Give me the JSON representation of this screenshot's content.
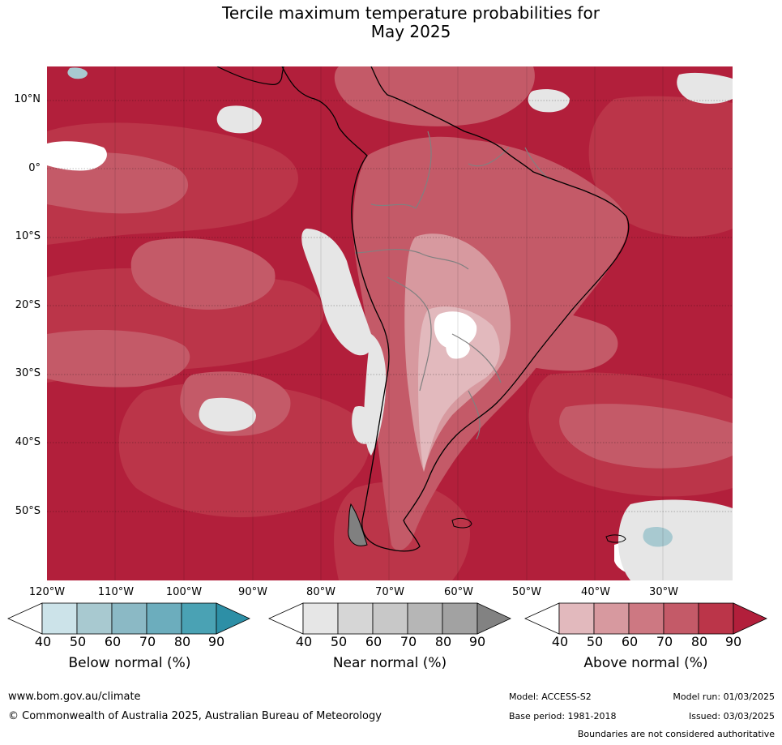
{
  "title": {
    "line1": "Tercile maximum temperature probabilities for",
    "line2": "May 2025"
  },
  "map": {
    "lat_labels": [
      "10°N",
      "0°",
      "10°S",
      "20°S",
      "30°S",
      "40°S",
      "50°S"
    ],
    "lon_labels": [
      "120°W",
      "110°W",
      "100°W",
      "90°W",
      "80°W",
      "70°W",
      "60°W",
      "50°W",
      "40°W",
      "30°W"
    ]
  },
  "colorbars": [
    {
      "title": "Below normal (%)",
      "ticks": [
        "40",
        "50",
        "60",
        "70",
        "80",
        "90"
      ],
      "colors": [
        "#ffffff",
        "#cce3e9",
        "#a8c9d0",
        "#8bb9c5",
        "#6cadbd",
        "#4aa2b4",
        "#2d8fa6"
      ]
    },
    {
      "title": "Near normal (%)",
      "ticks": [
        "40",
        "50",
        "60",
        "70",
        "80",
        "90"
      ],
      "colors": [
        "#ffffff",
        "#e6e6e6",
        "#d6d6d6",
        "#c8c8c8",
        "#b6b6b6",
        "#a2a2a2",
        "#828282"
      ]
    },
    {
      "title": "Above normal (%)",
      "ticks": [
        "40",
        "50",
        "60",
        "70",
        "80",
        "90"
      ],
      "colors": [
        "#ffffff",
        "#e2b9bd",
        "#d7999f",
        "#cd7882",
        "#c45a68",
        "#bb3549",
        "#b21f3b"
      ]
    }
  ],
  "footer": {
    "website": "www.bom.gov.au/climate",
    "copyright": "© Commonwealth of Australia 2025, Australian Bureau of Meteorology",
    "model": "Model: ACCESS-S2",
    "base_period": "Base period: 1981-2018",
    "model_run": "Model run: 01/03/2025",
    "issued": "Issued: 03/03/2025",
    "disclaimer": "Boundaries are not considered authoritative"
  }
}
